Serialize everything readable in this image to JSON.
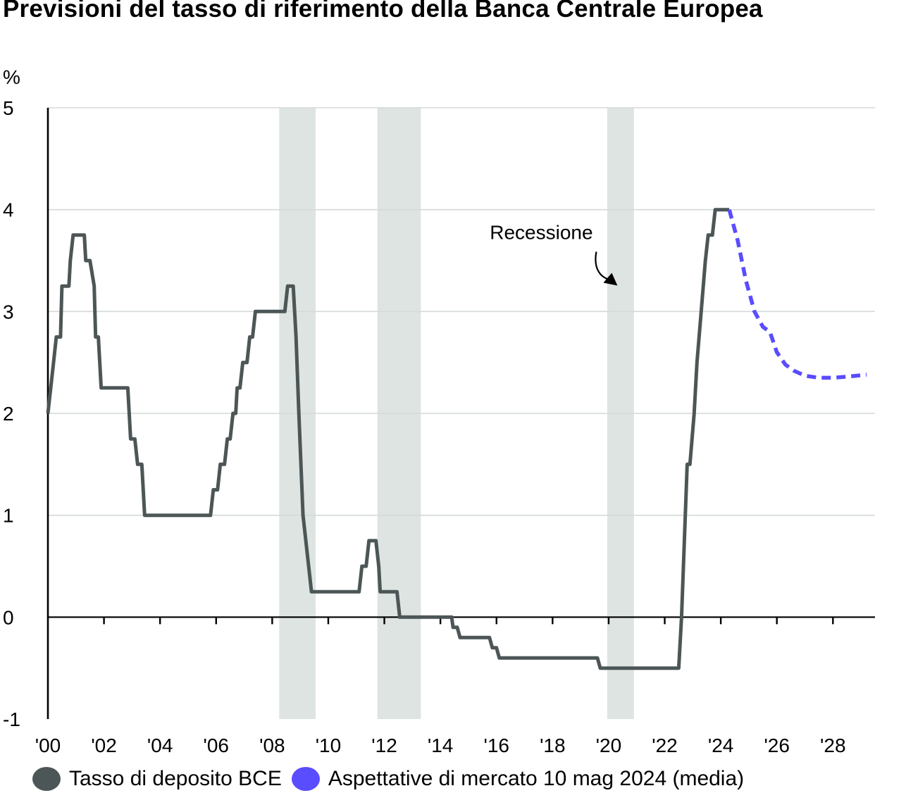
{
  "chart_data": {
    "type": "line",
    "title": "Previsioni del tasso di riferimento della Banca Centrale Europea",
    "ylabel": "%",
    "ylim": [
      -1,
      5
    ],
    "yticks": [
      -1,
      0,
      1,
      2,
      3,
      4,
      5
    ],
    "xlim": [
      2000,
      2029.5
    ],
    "xticks": [
      {
        "year": 2000,
        "label": "'00"
      },
      {
        "year": 2002,
        "label": "'02"
      },
      {
        "year": 2004,
        "label": "'04"
      },
      {
        "year": 2006,
        "label": "'06"
      },
      {
        "year": 2008,
        "label": "'08"
      },
      {
        "year": 2010,
        "label": "'10"
      },
      {
        "year": 2012,
        "label": "'12"
      },
      {
        "year": 2014,
        "label": "'14"
      },
      {
        "year": 2016,
        "label": "'16"
      },
      {
        "year": 2018,
        "label": "'18"
      },
      {
        "year": 2020,
        "label": "'20"
      },
      {
        "year": 2022,
        "label": "'22"
      },
      {
        "year": 2024,
        "label": "'24"
      },
      {
        "year": 2026,
        "label": "'26"
      },
      {
        "year": 2028,
        "label": "'28"
      }
    ],
    "grid": true,
    "legend_position": "bottom",
    "recessions": [
      {
        "start": 2008.25,
        "end": 2009.55
      },
      {
        "start": 2011.75,
        "end": 2013.3
      },
      {
        "start": 2019.95,
        "end": 2020.9
      }
    ],
    "annotation": {
      "text": "Recessione",
      "x": 2017.6,
      "y": 3.78
    },
    "series": [
      {
        "name": "Tasso di deposito BCE",
        "color": "#4d5656",
        "style": "solid",
        "points": [
          [
            2000.0,
            2.0
          ],
          [
            2000.2,
            2.5
          ],
          [
            2000.3,
            2.75
          ],
          [
            2000.45,
            2.75
          ],
          [
            2000.5,
            3.25
          ],
          [
            2000.6,
            3.25
          ],
          [
            2000.75,
            3.25
          ],
          [
            2000.8,
            3.5
          ],
          [
            2000.9,
            3.75
          ],
          [
            2001.3,
            3.75
          ],
          [
            2001.35,
            3.5
          ],
          [
            2001.5,
            3.5
          ],
          [
            2001.65,
            3.25
          ],
          [
            2001.7,
            2.75
          ],
          [
            2001.8,
            2.75
          ],
          [
            2001.9,
            2.25
          ],
          [
            2002.85,
            2.25
          ],
          [
            2002.95,
            1.75
          ],
          [
            2003.1,
            1.75
          ],
          [
            2003.2,
            1.5
          ],
          [
            2003.35,
            1.5
          ],
          [
            2003.45,
            1.0
          ],
          [
            2005.8,
            1.0
          ],
          [
            2005.9,
            1.25
          ],
          [
            2006.05,
            1.25
          ],
          [
            2006.15,
            1.5
          ],
          [
            2006.3,
            1.5
          ],
          [
            2006.4,
            1.75
          ],
          [
            2006.5,
            1.75
          ],
          [
            2006.6,
            2.0
          ],
          [
            2006.7,
            2.0
          ],
          [
            2006.75,
            2.25
          ],
          [
            2006.85,
            2.25
          ],
          [
            2006.95,
            2.5
          ],
          [
            2007.1,
            2.5
          ],
          [
            2007.2,
            2.75
          ],
          [
            2007.3,
            2.75
          ],
          [
            2007.4,
            3.0
          ],
          [
            2008.45,
            3.0
          ],
          [
            2008.55,
            3.25
          ],
          [
            2008.75,
            3.25
          ],
          [
            2008.85,
            2.75
          ],
          [
            2008.95,
            2.0
          ],
          [
            2009.1,
            1.0
          ],
          [
            2009.2,
            0.75
          ],
          [
            2009.3,
            0.5
          ],
          [
            2009.4,
            0.25
          ],
          [
            2011.1,
            0.25
          ],
          [
            2011.2,
            0.5
          ],
          [
            2011.35,
            0.5
          ],
          [
            2011.45,
            0.75
          ],
          [
            2011.7,
            0.75
          ],
          [
            2011.8,
            0.5
          ],
          [
            2011.85,
            0.25
          ],
          [
            2012.45,
            0.25
          ],
          [
            2012.55,
            0.0
          ],
          [
            2014.4,
            0.0
          ],
          [
            2014.45,
            -0.1
          ],
          [
            2014.6,
            -0.1
          ],
          [
            2014.7,
            -0.2
          ],
          [
            2015.75,
            -0.2
          ],
          [
            2015.85,
            -0.3
          ],
          [
            2016.0,
            -0.3
          ],
          [
            2016.1,
            -0.4
          ],
          [
            2019.6,
            -0.4
          ],
          [
            2019.7,
            -0.5
          ],
          [
            2022.5,
            -0.5
          ],
          [
            2022.6,
            0.0
          ],
          [
            2022.7,
            0.75
          ],
          [
            2022.8,
            1.5
          ],
          [
            2022.9,
            1.5
          ],
          [
            2023.05,
            2.0
          ],
          [
            2023.15,
            2.5
          ],
          [
            2023.3,
            3.0
          ],
          [
            2023.45,
            3.5
          ],
          [
            2023.55,
            3.75
          ],
          [
            2023.7,
            3.75
          ],
          [
            2023.8,
            4.0
          ],
          [
            2024.3,
            4.0
          ]
        ]
      },
      {
        "name": "Aspettative di mercato 10 mag 2024 (media)",
        "color": "#5a4cff",
        "style": "dashed",
        "points": [
          [
            2024.3,
            4.0
          ],
          [
            2024.6,
            3.7
          ],
          [
            2024.9,
            3.3
          ],
          [
            2025.2,
            3.0
          ],
          [
            2025.5,
            2.85
          ],
          [
            2025.75,
            2.8
          ],
          [
            2026.0,
            2.6
          ],
          [
            2026.3,
            2.48
          ],
          [
            2026.6,
            2.42
          ],
          [
            2027.0,
            2.37
          ],
          [
            2027.5,
            2.35
          ],
          [
            2028.0,
            2.35
          ],
          [
            2028.5,
            2.36
          ],
          [
            2029.2,
            2.38
          ]
        ]
      }
    ]
  }
}
